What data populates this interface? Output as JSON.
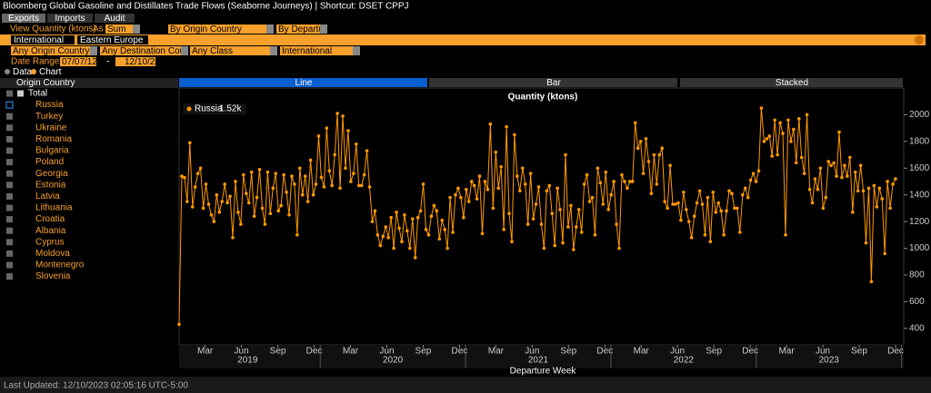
{
  "window": {
    "title": "Bloomberg Global Gasoline and Distillates Trade Flows (Seaborne Journeys) | Shortcut: DSET CPPJ",
    "tabs": [
      "Exports",
      "Imports",
      "Audit"
    ],
    "view_label": "View Quantity (ktons)",
    "as_label": "As",
    "fields": [
      "Sum",
      "By Origin Country",
      "By Departur"
    ],
    "filters": [
      "International",
      "Eastern Europe"
    ],
    "selectors": [
      "Any Origin Country",
      "Any Destination Coun",
      "Any Class",
      "International"
    ],
    "date_label": "Date Range",
    "date_from": "07/07/12",
    "date_sep": "-",
    "date_to": "12/10/23",
    "views": [
      "Data",
      "Chart"
    ],
    "panel_header": "Origin Country",
    "tree": [
      "Total",
      "Russia",
      "Turkey",
      "Ukraine",
      "Romania",
      "Bulgaria",
      "Poland",
      "Georgia",
      "Estonia",
      "Latvia",
      "Lithuania",
      "Croatia",
      "Albania",
      "Cyprus",
      "Moldova",
      "Montenegro",
      "Slovenia"
    ],
    "chart_tabs": [
      "Line",
      "Bar",
      "Stacked"
    ],
    "status": "Last Updated: 12/10/2023 02:05:16 UTC-5:00"
  },
  "chart_data": {
    "type": "line",
    "title": "Quantity (ktons)",
    "xlabel": "Departure Week",
    "series": [
      {
        "name": "Russia",
        "legend_value": "1.52k",
        "color": "#ff9900",
        "values": [
          430,
          1540,
          1530,
          1350,
          1790,
          1310,
          1460,
          1560,
          1600,
          1300,
          1480,
          1330,
          1250,
          1200,
          1400,
          1270,
          1350,
          1480,
          1340,
          1390,
          1080,
          1500,
          1270,
          1180,
          1550,
          1410,
          1340,
          1570,
          1240,
          1380,
          1590,
          1300,
          1180,
          1570,
          1260,
          1450,
          1560,
          1280,
          1320,
          1550,
          1420,
          1250,
          1540,
          1480,
          1100,
          1600,
          1400,
          1540,
          1350,
          1660,
          1400,
          1480,
          1840,
          1530,
          1460,
          1900,
          1580,
          1470,
          1700,
          2010,
          1450,
          1990,
          1600,
          1880,
          1500,
          1560,
          1780,
          1470,
          1470,
          1550,
          1730,
          1460,
          1200,
          1280,
          1100,
          1020,
          1090,
          1160,
          1080,
          1230,
          1000,
          1270,
          1150,
          1050,
          1250,
          1130,
          1000,
          1220,
          930,
          1230,
          1280,
          1480,
          1140,
          1100,
          1240,
          1320,
          1280,
          1070,
          1210,
          1140,
          1000,
          1380,
          1120,
          1400,
          1450,
          1380,
          1230,
          1440,
          1350,
          1500,
          1470,
          1370,
          1540,
          1110,
          1500,
          1440,
          1930,
          1300,
          1720,
          1450,
          1610,
          1140,
          1910,
          1260,
          1050,
          1850,
          1540,
          1430,
          1600,
          1480,
          1180,
          1560,
          1220,
          1330,
          1460,
          1180,
          1000,
          1430,
          1470,
          1260,
          1020,
          1450,
          1290,
          1040,
          1700,
          1160,
          1320,
          990,
          1160,
          1290,
          1120,
          1480,
          1550,
          1350,
          1380,
          1100,
          1600,
          1490,
          1330,
          1570,
          1290,
          1400,
          1500,
          1180,
          1000,
          1550,
          1500,
          1450,
          1500,
          1500,
          1940,
          1750,
          1800,
          1560,
          1820,
          1650,
          1410,
          1700,
          1480,
          1700,
          1750,
          1350,
          1300,
          1620,
          1330,
          1330,
          1340,
          1210,
          1420,
          1290,
          1200,
          1080,
          1240,
          1340,
          1430,
          1330,
          1100,
          1380,
          1050,
          1420,
          1270,
          1340,
          1280,
          1100,
          1280,
          1430,
          1410,
          1300,
          1300,
          1120,
          1400,
          1450,
          1380,
          1510,
          1560,
          1500,
          1580,
          2050,
          1800,
          1820,
          1840,
          1690,
          1960,
          1700,
          1940,
          1860,
          1100,
          1960,
          1800,
          1890,
          1640,
          1970,
          1680,
          1560,
          2000,
          1440,
          1340,
          1520,
          1440,
          1600,
          1300,
          1380,
          1650,
          1620,
          1640,
          1540,
          1870,
          1530,
          1620,
          1540,
          1680,
          1270,
          1570,
          1430,
          1620,
          1430,
          1040,
          1450,
          750,
          1470,
          1310,
          1450,
          1370,
          960,
          1500,
          1300,
          1480,
          1520
        ]
      }
    ],
    "xlim": [
      -0.15,
      59
    ],
    "xticks": [
      {
        "value": 2,
        "label": "Mar"
      },
      {
        "value": 5,
        "label": "Jun"
      },
      {
        "value": 8,
        "label": "Sep"
      },
      {
        "value": 11,
        "label": "Dec"
      },
      {
        "value": 14,
        "label": "Mar"
      },
      {
        "value": 17,
        "label": "Jun"
      },
      {
        "value": 20,
        "label": "Sep"
      },
      {
        "value": 23,
        "label": "Dec"
      },
      {
        "value": 26,
        "label": "Mar"
      },
      {
        "value": 29,
        "label": "Jun"
      },
      {
        "value": 32,
        "label": "Sep"
      },
      {
        "value": 35,
        "label": "Dec"
      },
      {
        "value": 38,
        "label": "Mar"
      },
      {
        "value": 41,
        "label": "Jun"
      },
      {
        "value": 44,
        "label": "Sep"
      },
      {
        "value": 47,
        "label": "Dec"
      },
      {
        "value": 50,
        "label": "Mar"
      },
      {
        "value": 53,
        "label": "Jun"
      },
      {
        "value": 56,
        "label": "Sep"
      },
      {
        "value": 59,
        "label": "Dec"
      }
    ],
    "xgroups": [
      {
        "value": 5.5,
        "label": "2019"
      },
      {
        "value": 17.5,
        "label": "2020"
      },
      {
        "value": 29.5,
        "label": "2021"
      },
      {
        "value": 41.5,
        "label": "2022"
      },
      {
        "value": 53.5,
        "label": "2023"
      }
    ],
    "ylim": [
      290,
      2200
    ],
    "yticks": [
      400,
      600,
      800,
      1000,
      1200,
      1400,
      1600,
      1800,
      2000
    ],
    "grid": false
  }
}
